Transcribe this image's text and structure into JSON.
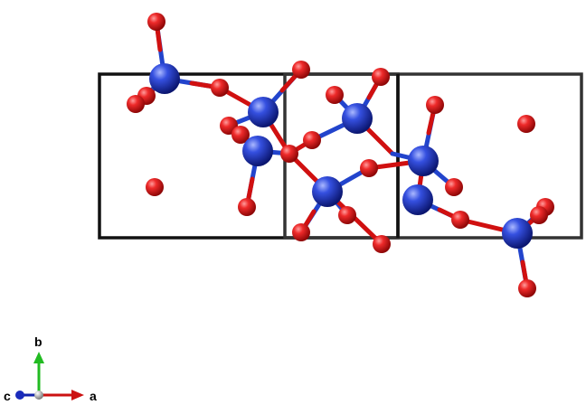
{
  "axes_labels": {
    "a": "a",
    "b": "b",
    "c": "c"
  },
  "colors": {
    "cell_edge": "#111111",
    "bond_blue": "#2244cc",
    "bond_red": "#d01010",
    "atom_blue": "#2a3fd6",
    "atom_red": "#e0161c",
    "axis_a": "#cc1111",
    "axis_b": "#22bb22",
    "axis_c": "#1122aa"
  },
  "icons": {
    "axis_indicator": "crystal-axes-icon"
  }
}
